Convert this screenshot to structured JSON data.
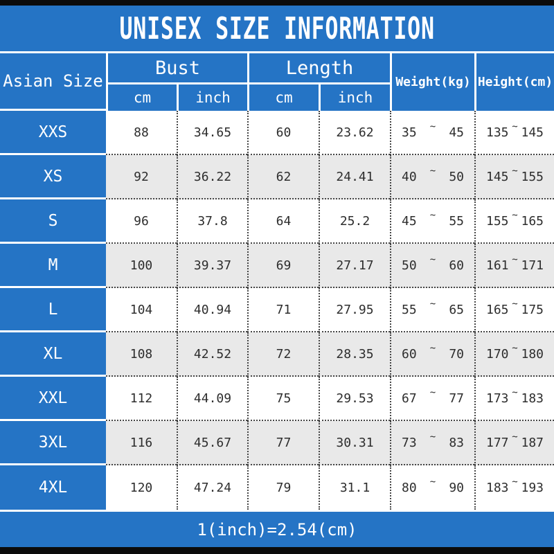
{
  "title": "UNISEX SIZE INFORMATION",
  "colors": {
    "accent_blue": "#2574c5",
    "alt_row_gray": "#e9e9e9",
    "text_dark": "#2d2d2d",
    "frame_black": "#0b0b0b",
    "white": "#ffffff"
  },
  "table": {
    "corner_header": "Asian Size",
    "bust_header": "Bust",
    "length_header": "Length",
    "weight_header": "Weight(kg)",
    "height_header": "Height(cm)",
    "sub_headers": [
      "cm",
      "inch",
      "cm",
      "inch"
    ],
    "tilde": "~",
    "rows": [
      {
        "size": "XXS",
        "bust_cm": "88",
        "bust_inch": "34.65",
        "length_cm": "60",
        "length_inch": "23.62",
        "weight_min": "35",
        "weight_max": "45",
        "height_min": "135",
        "height_max": "145"
      },
      {
        "size": "XS",
        "bust_cm": "92",
        "bust_inch": "36.22",
        "length_cm": "62",
        "length_inch": "24.41",
        "weight_min": "40",
        "weight_max": "50",
        "height_min": "145",
        "height_max": "155"
      },
      {
        "size": "S",
        "bust_cm": "96",
        "bust_inch": "37.8",
        "length_cm": "64",
        "length_inch": "25.2",
        "weight_min": "45",
        "weight_max": "55",
        "height_min": "155",
        "height_max": "165"
      },
      {
        "size": "M",
        "bust_cm": "100",
        "bust_inch": "39.37",
        "length_cm": "69",
        "length_inch": "27.17",
        "weight_min": "50",
        "weight_max": "60",
        "height_min": "161",
        "height_max": "171"
      },
      {
        "size": "L",
        "bust_cm": "104",
        "bust_inch": "40.94",
        "length_cm": "71",
        "length_inch": "27.95",
        "weight_min": "55",
        "weight_max": "65",
        "height_min": "165",
        "height_max": "175"
      },
      {
        "size": "XL",
        "bust_cm": "108",
        "bust_inch": "42.52",
        "length_cm": "72",
        "length_inch": "28.35",
        "weight_min": "60",
        "weight_max": "70",
        "height_min": "170",
        "height_max": "180"
      },
      {
        "size": "XXL",
        "bust_cm": "112",
        "bust_inch": "44.09",
        "length_cm": "75",
        "length_inch": "29.53",
        "weight_min": "67",
        "weight_max": "77",
        "height_min": "173",
        "height_max": "183"
      },
      {
        "size": "3XL",
        "bust_cm": "116",
        "bust_inch": "45.67",
        "length_cm": "77",
        "length_inch": "30.31",
        "weight_min": "73",
        "weight_max": "83",
        "height_min": "177",
        "height_max": "187"
      },
      {
        "size": "4XL",
        "bust_cm": "120",
        "bust_inch": "47.24",
        "length_cm": "79",
        "length_inch": "31.1",
        "weight_min": "80",
        "weight_max": "90",
        "height_min": "183",
        "height_max": "193"
      }
    ]
  },
  "footer": {
    "note": "1(inch)=2.54(cm)"
  },
  "chart_data": {
    "type": "table",
    "title": "UNISEX SIZE INFORMATION",
    "columns": [
      "Asian Size",
      "Bust cm",
      "Bust inch",
      "Length cm",
      "Length inch",
      "Weight(kg)",
      "Height(cm)"
    ],
    "rows": [
      [
        "XXS",
        "88",
        "34.65",
        "60",
        "23.62",
        "35 ~ 45",
        "135 ~ 145"
      ],
      [
        "XS",
        "92",
        "36.22",
        "62",
        "24.41",
        "40 ~ 50",
        "145 ~ 155"
      ],
      [
        "S",
        "96",
        "37.8",
        "64",
        "25.2",
        "45 ~ 55",
        "155 ~ 165"
      ],
      [
        "M",
        "100",
        "39.37",
        "69",
        "27.17",
        "50 ~ 60",
        "161 ~ 171"
      ],
      [
        "L",
        "104",
        "40.94",
        "71",
        "27.95",
        "55 ~ 65",
        "165 ~ 175"
      ],
      [
        "XL",
        "108",
        "42.52",
        "72",
        "28.35",
        "60 ~ 70",
        "170 ~ 180"
      ],
      [
        "XXL",
        "112",
        "44.09",
        "75",
        "29.53",
        "67 ~ 77",
        "173 ~ 183"
      ],
      [
        "3XL",
        "116",
        "45.67",
        "77",
        "30.31",
        "73 ~ 83",
        "177 ~ 187"
      ],
      [
        "4XL",
        "120",
        "47.24",
        "79",
        "31.1",
        "80 ~ 90",
        "183 ~ 193"
      ]
    ],
    "note": "1(inch)=2.54(cm)"
  }
}
